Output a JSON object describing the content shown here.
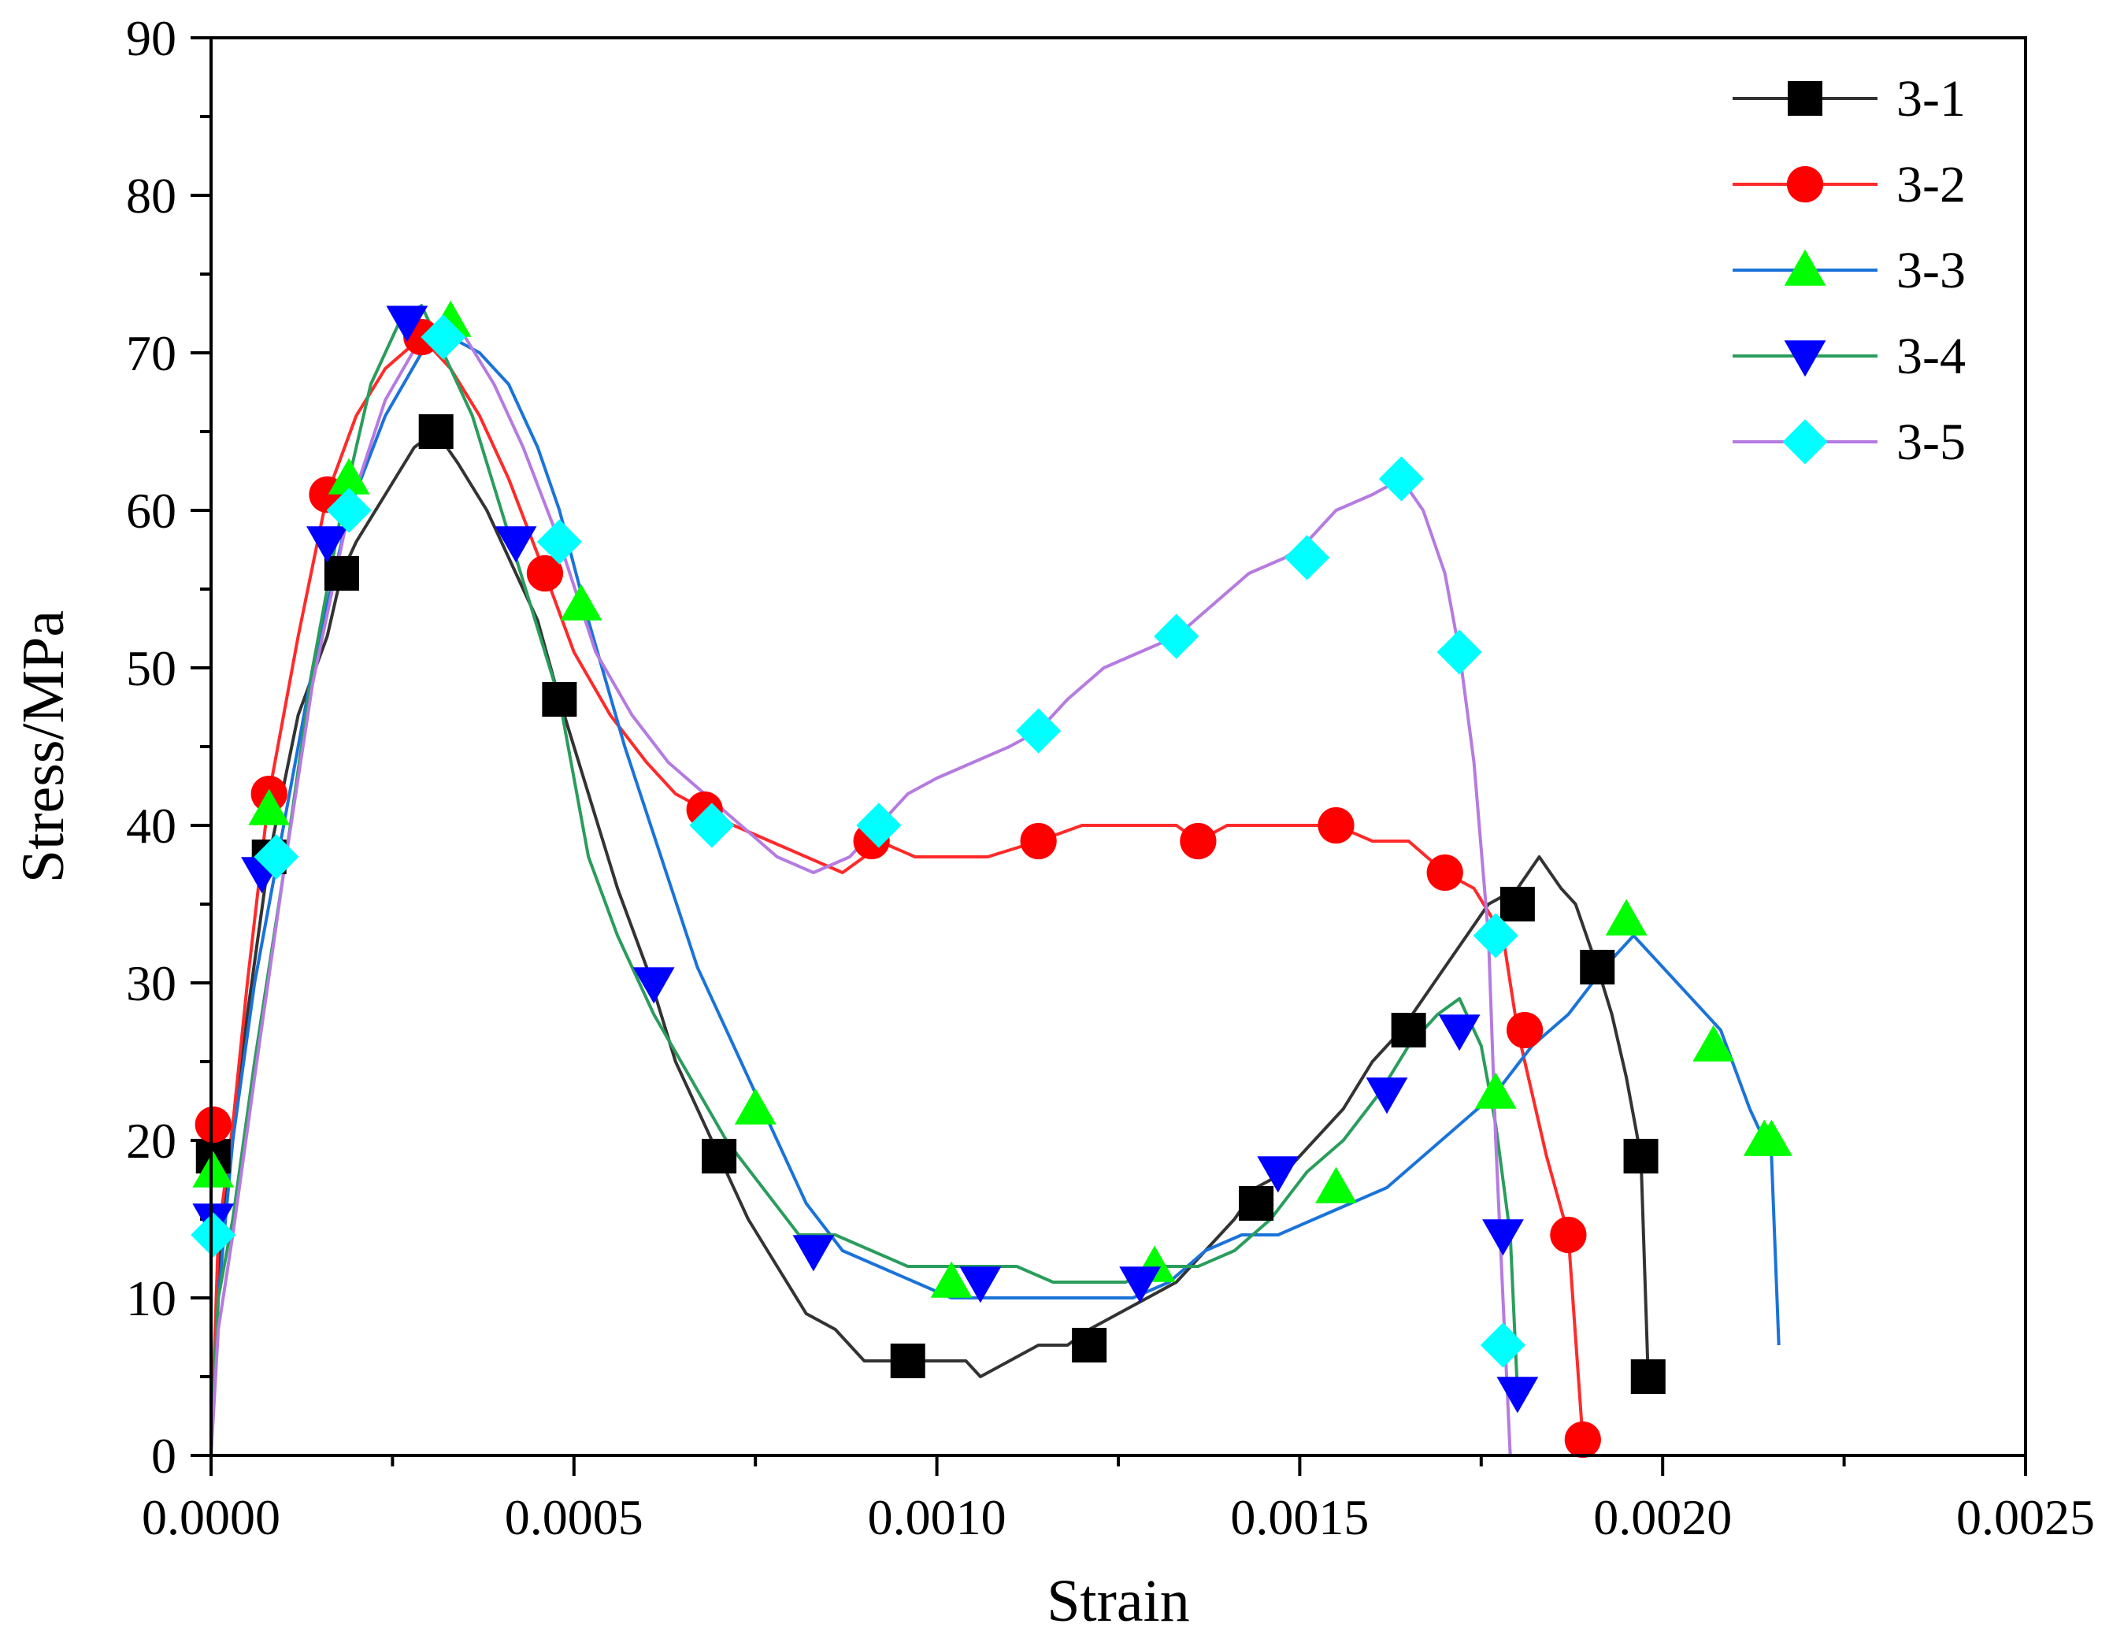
{
  "chart_data": {
    "type": "line",
    "title": "",
    "xlabel": "Strain",
    "ylabel": "Stress/MPa",
    "xlim": [
      0,
      0.0025
    ],
    "ylim": [
      0,
      90
    ],
    "xticks": [
      0,
      0.0005,
      0.001,
      0.0015,
      0.002,
      0.0025
    ],
    "xtick_labels": [
      "0.0000",
      "0.0005",
      "0.0010",
      "0.0015",
      "0.0020",
      "0.0025"
    ],
    "yticks": [
      0,
      10,
      20,
      30,
      40,
      50,
      60,
      70,
      80,
      90
    ],
    "ytick_labels": [
      "0",
      "10",
      "20",
      "30",
      "40",
      "50",
      "60",
      "70",
      "80",
      "90"
    ],
    "grid": false,
    "legend_position": "top-right",
    "series": [
      {
        "name": "3-1",
        "color": "#333333",
        "marker": "square",
        "marker_color": "#000000",
        "x": [
          0,
          1e-05,
          3e-05,
          5e-05,
          8e-05,
          0.00012,
          0.00016,
          0.00018,
          0.0002,
          0.00024,
          0.00028,
          0.00031,
          0.00034,
          0.00038,
          0.00042,
          0.00045,
          0.00048,
          0.00052,
          0.00056,
          0.0006,
          0.00064,
          0.00067,
          0.0007,
          0.00074,
          0.00078,
          0.00082,
          0.00086,
          0.0009,
          0.00093,
          0.00096,
          0.001,
          0.00104,
          0.00106,
          0.0011,
          0.00114,
          0.00118,
          0.00121,
          0.00125,
          0.00129,
          0.00133,
          0.00137,
          0.00141,
          0.00144,
          0.00148,
          0.00152,
          0.00156,
          0.0016,
          0.00164,
          0.00167,
          0.0017,
          0.00173,
          0.00176,
          0.0018,
          0.00183,
          0.00186,
          0.00188,
          0.00191,
          0.00193,
          0.00195,
          0.00197,
          0.00198
        ],
        "y": [
          0,
          12,
          20,
          28,
          38,
          47,
          52,
          56,
          58,
          61,
          64,
          65,
          63,
          60,
          56,
          53,
          48,
          42,
          36,
          31,
          25,
          22,
          19,
          15,
          12,
          9,
          8,
          6,
          6,
          6,
          6,
          6,
          5,
          6,
          7,
          7,
          8,
          9,
          10,
          11,
          13,
          15,
          17,
          18,
          20,
          22,
          25,
          27,
          29,
          31,
          33,
          35,
          36,
          38,
          36,
          35,
          31,
          28,
          24,
          19,
          5
        ]
      },
      {
        "name": "3-2",
        "color": "#ff2a2a",
        "marker": "circle",
        "marker_color": "#ff0000",
        "x": [
          0,
          1e-05,
          3e-05,
          5e-05,
          8e-05,
          0.00012,
          0.00016,
          0.0002,
          0.00024,
          0.00029,
          0.00033,
          0.00037,
          0.00041,
          0.00046,
          0.0005,
          0.00055,
          0.0006,
          0.00064,
          0.00068,
          0.00072,
          0.00077,
          0.00082,
          0.00087,
          0.0009,
          0.00092,
          0.00097,
          0.00102,
          0.00107,
          0.00114,
          0.0012,
          0.00127,
          0.00133,
          0.00136,
          0.0014,
          0.00145,
          0.0015,
          0.00155,
          0.0016,
          0.00165,
          0.0017,
          0.00174,
          0.00178,
          0.0018,
          0.00182,
          0.00184,
          0.00187,
          0.00189
        ],
        "y": [
          0,
          14,
          21,
          30,
          42,
          52,
          61,
          66,
          69,
          71,
          69,
          66,
          62,
          56,
          51,
          47,
          44,
          42,
          41,
          40,
          39,
          38,
          37,
          38,
          39,
          38,
          38,
          38,
          39,
          40,
          40,
          40,
          39,
          40,
          40,
          40,
          40,
          39,
          39,
          37,
          36,
          33,
          27,
          23,
          19,
          14,
          1
        ]
      },
      {
        "name": "3-3",
        "color": "#1a73d9",
        "marker": "triangle-up",
        "marker_color": "#00ff00",
        "x": [
          0,
          1e-05,
          3e-05,
          6e-05,
          0.0001,
          0.00014,
          0.00019,
          0.00024,
          0.00029,
          0.00033,
          0.00037,
          0.00041,
          0.00045,
          0.00048,
          0.00052,
          0.00057,
          0.00062,
          0.00067,
          0.00072,
          0.00077,
          0.00082,
          0.00087,
          0.00092,
          0.00097,
          0.00102,
          0.00107,
          0.00112,
          0.00117,
          0.00122,
          0.00127,
          0.00132,
          0.00137,
          0.00142,
          0.00147,
          0.00152,
          0.00157,
          0.00162,
          0.00167,
          0.00172,
          0.00177,
          0.00182,
          0.00187,
          0.00192,
          0.00196,
          0.002,
          0.00204,
          0.00208,
          0.00212,
          0.00214,
          0.00215,
          0.00216
        ],
        "y": [
          0,
          10,
          20,
          30,
          40,
          50,
          60,
          66,
          70,
          71,
          70,
          68,
          64,
          60,
          53,
          45,
          38,
          31,
          26,
          21,
          16,
          13,
          12,
          11,
          10,
          10,
          10,
          10,
          10,
          10,
          11,
          13,
          14,
          14,
          15,
          16,
          17,
          19,
          21,
          23,
          26,
          28,
          31,
          33,
          31,
          29,
          27,
          22,
          20,
          19,
          7
        ]
      },
      {
        "name": "3-4",
        "color": "#2a9d5c",
        "marker": "triangle-down",
        "marker_color": "#0000ff",
        "x": [
          0,
          1e-05,
          3e-05,
          6e-05,
          0.0001,
          0.00014,
          0.00018,
          0.00022,
          0.00026,
          0.00029,
          0.00032,
          0.00036,
          0.0004,
          0.00044,
          0.00048,
          0.00052,
          0.00056,
          0.00061,
          0.00066,
          0.00071,
          0.00076,
          0.00081,
          0.00086,
          0.00091,
          0.00096,
          0.00101,
          0.00106,
          0.00111,
          0.00116,
          0.00121,
          0.00126,
          0.00131,
          0.00136,
          0.00141,
          0.00146,
          0.00151,
          0.00156,
          0.00161,
          0.00165,
          0.00169,
          0.00172,
          0.00175,
          0.00177,
          0.00179,
          0.0018
        ],
        "y": [
          0,
          10,
          15,
          25,
          37,
          50,
          60,
          68,
          72,
          73,
          70,
          66,
          60,
          54,
          48,
          38,
          33,
          28,
          24,
          20,
          17,
          14,
          14,
          13,
          12,
          12,
          12,
          12,
          11,
          11,
          11,
          12,
          12,
          13,
          15,
          18,
          20,
          23,
          26,
          28,
          29,
          26,
          21,
          14,
          4
        ]
      },
      {
        "name": "3-5",
        "color": "#b57be0",
        "marker": "diamond",
        "marker_color": "#00ffff",
        "x": [
          0,
          1e-05,
          3e-05,
          6e-05,
          0.0001,
          0.00014,
          0.00019,
          0.00024,
          0.00029,
          0.00032,
          0.00035,
          0.00039,
          0.00043,
          0.00048,
          0.00053,
          0.00058,
          0.00063,
          0.00068,
          0.00073,
          0.00078,
          0.00083,
          0.00088,
          0.00092,
          0.00096,
          0.001,
          0.00105,
          0.0011,
          0.00114,
          0.00118,
          0.00123,
          0.00128,
          0.00133,
          0.00138,
          0.00143,
          0.00148,
          0.00151,
          0.00155,
          0.0016,
          0.00164,
          0.00167,
          0.0017,
          0.00172,
          0.00174,
          0.00176,
          0.00177,
          0.00178,
          0.00179
        ],
        "y": [
          0,
          8,
          14,
          24,
          37,
          49,
          60,
          67,
          71,
          72,
          71,
          68,
          64,
          58,
          51,
          47,
          44,
          42,
          40,
          38,
          37,
          38,
          40,
          42,
          43,
          44,
          45,
          46,
          48,
          50,
          51,
          52,
          54,
          56,
          57,
          58,
          60,
          61,
          62,
          60,
          56,
          51,
          44,
          33,
          20,
          10,
          0
        ]
      }
    ],
    "marker_points": [
      {
        "series": "3-1",
        "x": [
          3e-06,
          8e-05,
          0.00018,
          0.00031,
          0.00048,
          0.0007,
          0.00096,
          0.00121,
          0.00144,
          0.00165,
          0.0018,
          0.00191,
          0.00197,
          0.00198
        ],
        "y": [
          19,
          38,
          56,
          65,
          48,
          19,
          6,
          7,
          16,
          27,
          35,
          31,
          19,
          5
        ]
      },
      {
        "series": "3-2",
        "x": [
          3e-06,
          8e-05,
          0.00016,
          0.00029,
          0.00046,
          0.00068,
          0.00091,
          0.00114,
          0.00136,
          0.00155,
          0.0017,
          0.00181,
          0.00187,
          0.00189
        ],
        "y": [
          21,
          42,
          61,
          71,
          56,
          41,
          39,
          39,
          39,
          40,
          37,
          27,
          14,
          1
        ]
      },
      {
        "series": "3-3",
        "x": [
          3e-06,
          8e-05,
          0.00019,
          0.00033,
          0.00051,
          0.00075,
          0.00102,
          0.0013,
          0.00155,
          0.00177,
          0.00195,
          0.00207,
          0.00214,
          0.00215
        ],
        "y": [
          18,
          41,
          62,
          72,
          54,
          22,
          11,
          12,
          17,
          23,
          34,
          26,
          20,
          20
        ]
      },
      {
        "series": "3-4",
        "x": [
          3e-06,
          7e-05,
          0.00016,
          0.00027,
          0.00042,
          0.00061,
          0.00083,
          0.00106,
          0.00128,
          0.00147,
          0.00162,
          0.00172,
          0.00178,
          0.0018
        ],
        "y": [
          15,
          37,
          58,
          72,
          58,
          30,
          13,
          11,
          11,
          18,
          23,
          27,
          14,
          4
        ]
      },
      {
        "series": "3-5",
        "x": [
          3e-06,
          9e-05,
          0.00019,
          0.00032,
          0.00048,
          0.00069,
          0.00092,
          0.00114,
          0.00133,
          0.00151,
          0.00164,
          0.00172,
          0.00177,
          0.00178
        ],
        "y": [
          14,
          38,
          60,
          71,
          58,
          40,
          40,
          46,
          52,
          57,
          62,
          51,
          33,
          7
        ]
      }
    ]
  }
}
